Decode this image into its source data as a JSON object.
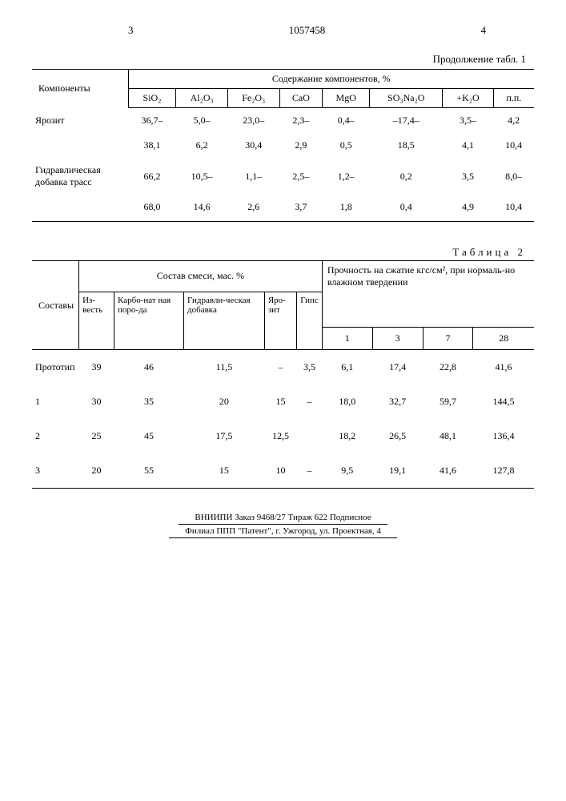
{
  "header": {
    "left_num": "3",
    "center_num": "1057458",
    "right_num": "4",
    "cont_label": "Продолжение табл. 1"
  },
  "table1": {
    "row_label_header": "Компоненты",
    "super_header": "Содержание компонентов, %",
    "columns": [
      "SiO₂",
      "Al₂O₃",
      "Fe₂O₃",
      "CaO",
      "MgO",
      "SO₃Na₂O",
      "+K₂O",
      "п.п."
    ],
    "rows": [
      {
        "label": "Ярозит",
        "vals": [
          "36,7–",
          "5,0–",
          "23,0–",
          "2,3–",
          "0,4–",
          "–17,4–",
          "3,5–",
          "4,2"
        ]
      },
      {
        "label": "",
        "vals": [
          "38,1",
          "6,2",
          "30,4",
          "2,9",
          "0,5",
          "18,5",
          "4,1",
          "10,4"
        ]
      },
      {
        "label": "Гидравлическая добавка трасс",
        "vals": [
          "66,2",
          "10,5–",
          "1,1–",
          "2,5–",
          "1,2–",
          "0,2",
          "3,5",
          "8,0–"
        ]
      },
      {
        "label": "",
        "vals": [
          "68,0",
          "14,6",
          "2,6",
          "3,7",
          "1,8",
          "0,4",
          "4,9",
          "10,4"
        ]
      }
    ]
  },
  "table2": {
    "title": "Таблица 2",
    "sostavy_header": "Составы",
    "sostav_smesi_header": "Состав смеси, мас. %",
    "prochnost_header": "Прочность на сжатие кгс/см², при нормаль-но влажном твердении",
    "mix_columns": [
      "Из-весть",
      "Карбо-нат ная поро-да",
      "Гидравли-ческая добавка",
      "Яро-зит",
      "Гипс"
    ],
    "day_columns": [
      "1",
      "3",
      "7",
      "28"
    ],
    "rows": [
      {
        "label": "Прототип",
        "mix": [
          "39",
          "46",
          "11,5",
          "–",
          "3,5"
        ],
        "days": [
          "6,1",
          "17,4",
          "22,8",
          "41,6"
        ]
      },
      {
        "label": "1",
        "mix": [
          "30",
          "35",
          "20",
          "15",
          "–"
        ],
        "days": [
          "18,0",
          "32,7",
          "59,7",
          "144,5"
        ]
      },
      {
        "label": "2",
        "mix": [
          "25",
          "45",
          "17,5",
          "12,5",
          ""
        ],
        "days": [
          "18,2",
          "26,5",
          "48,1",
          "136,4"
        ]
      },
      {
        "label": "3",
        "mix": [
          "20",
          "55",
          "15",
          "10",
          "–"
        ],
        "days": [
          "9,5",
          "19,1",
          "41,6",
          "127,8"
        ]
      }
    ]
  },
  "footer": {
    "line1": "ВНИИПИ   Заказ 9468/27   Тираж 622   Подписное",
    "line2": "Филиал ППП \"Патент\", г. Ужгород, ул. Проектная, 4"
  }
}
